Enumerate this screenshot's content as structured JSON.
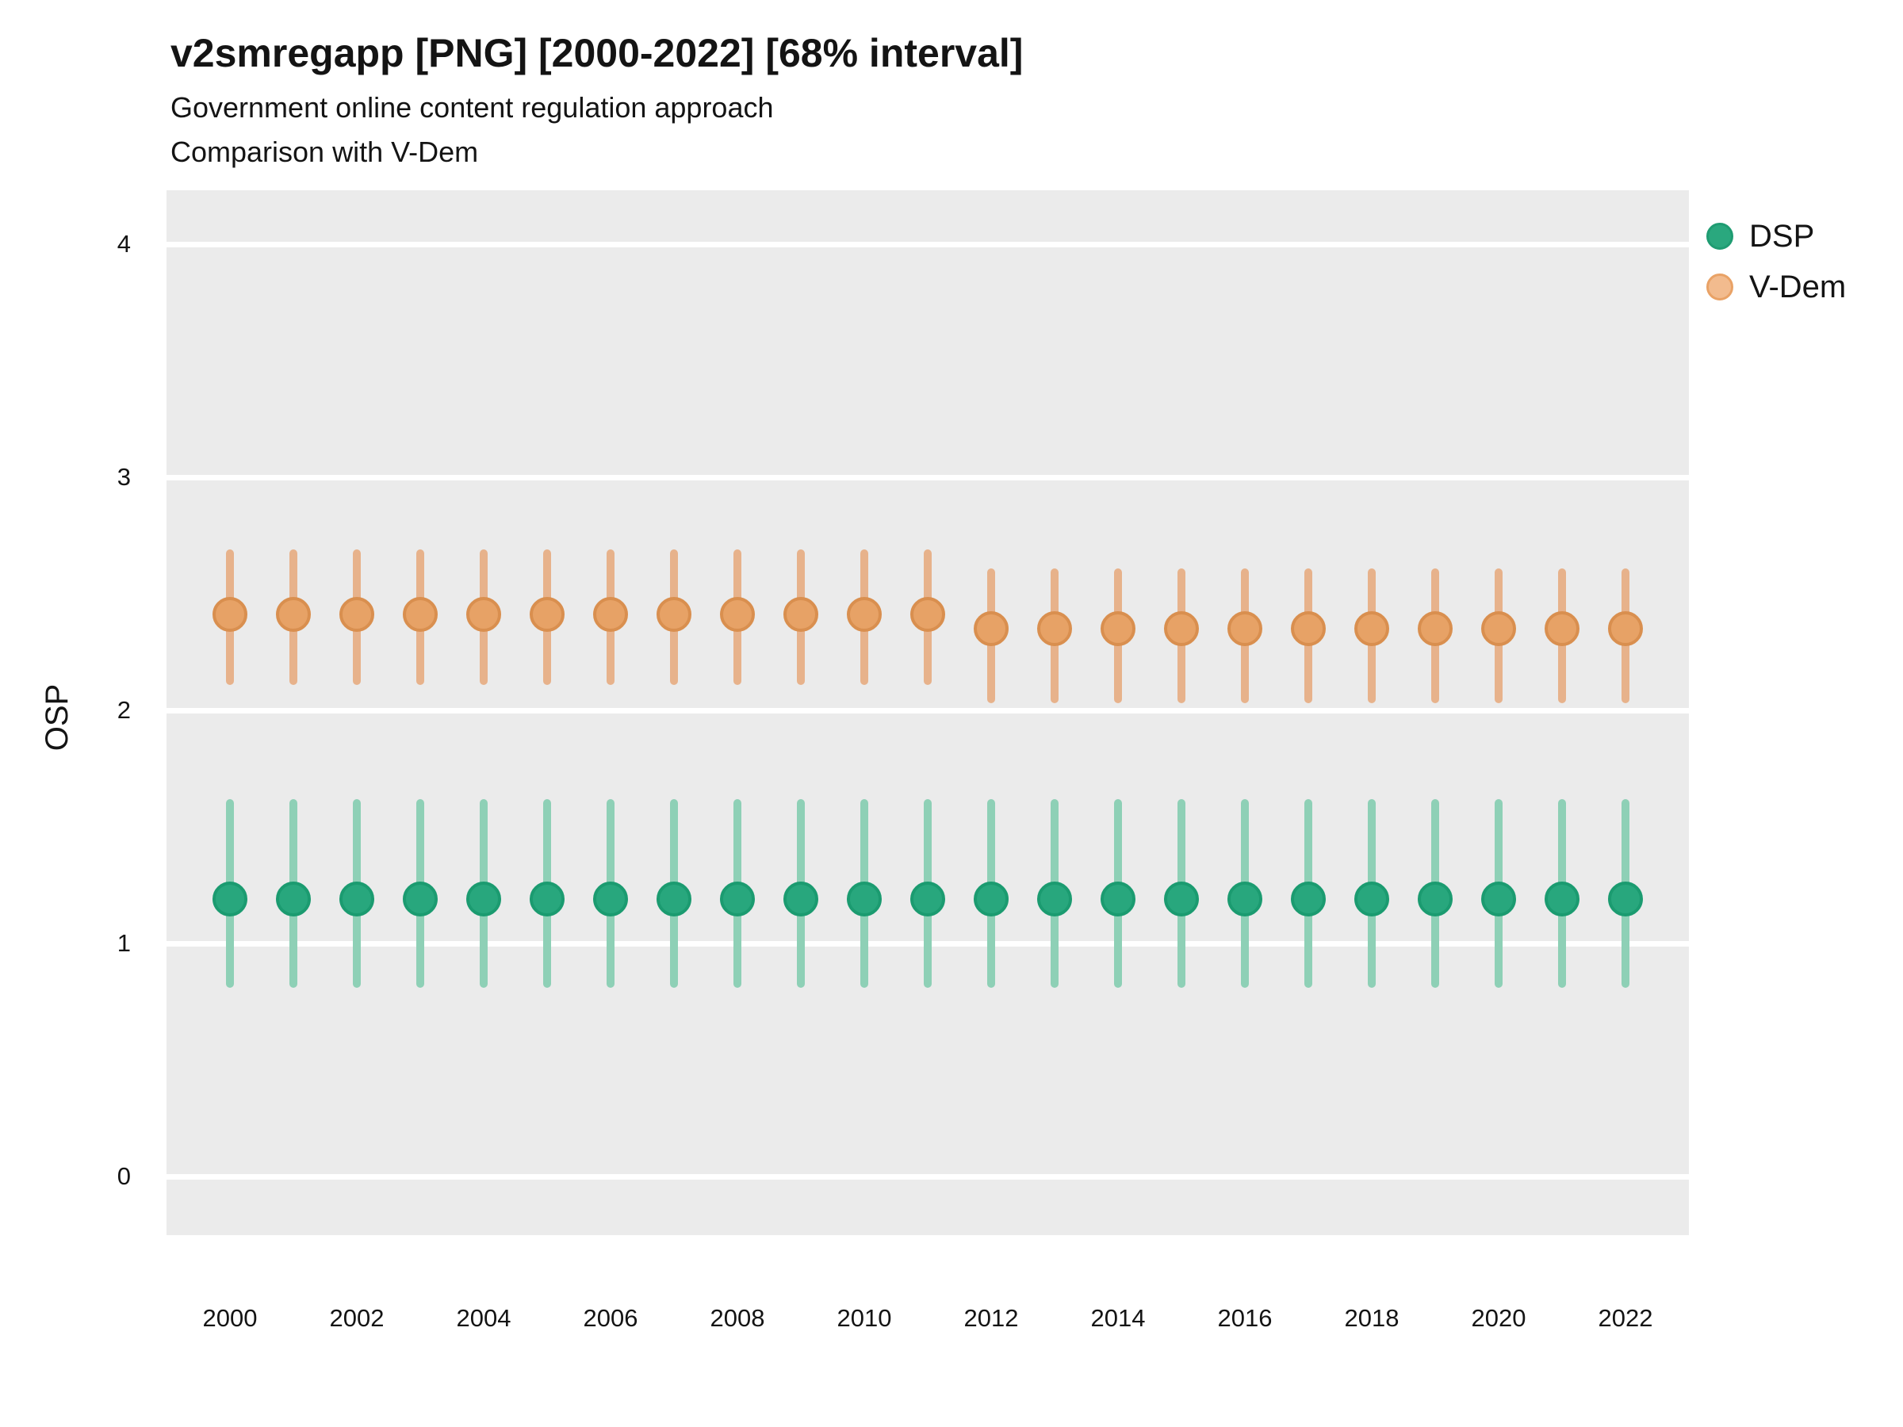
{
  "header": {
    "title": "v2smregapp [PNG] [2000-2022] [68% interval]",
    "subtitle1": "Government online content regulation approach",
    "subtitle2": "Comparison with V-Dem"
  },
  "axes": {
    "y_label": "OSP",
    "y_ticks": [
      0,
      1,
      2,
      3,
      4
    ],
    "x_ticks": [
      2000,
      2002,
      2004,
      2006,
      2008,
      2010,
      2012,
      2014,
      2016,
      2018,
      2020,
      2022
    ]
  },
  "legend": {
    "items": [
      {
        "label": "DSP",
        "fill": "#2aa87e",
        "border": "#1f9c72"
      },
      {
        "label": "V-Dem",
        "fill": "#f2bb8e",
        "border": "#e9a266"
      }
    ]
  },
  "colors": {
    "plot_bg": "#ebebeb",
    "grid": "#ffffff",
    "text": "#141414",
    "series_styles": {
      "DSP": {
        "bar": "#8ed0b6",
        "point_fill": "#28a77d",
        "point_border": "#1b9b70"
      },
      "V-Dem": {
        "bar": "#e7b28b",
        "point_fill": "#e7a266",
        "point_border": "#d98f4f"
      }
    }
  },
  "chart_data": {
    "type": "scatter",
    "style": "pointrange: point estimate with 68% credible interval bars, per year",
    "title": "v2smregapp [PNG] [2000-2022] [68% interval]",
    "subtitle": "Government online content regulation approach — Comparison with V-Dem",
    "xlabel": "",
    "ylabel": "OSP",
    "x": [
      2000,
      2001,
      2002,
      2003,
      2004,
      2005,
      2006,
      2007,
      2008,
      2009,
      2010,
      2011,
      2012,
      2013,
      2014,
      2015,
      2016,
      2017,
      2018,
      2019,
      2020,
      2021,
      2022
    ],
    "series": [
      {
        "name": "DSP",
        "color": "#1b9e77",
        "est": [
          1.19,
          1.19,
          1.19,
          1.19,
          1.19,
          1.19,
          1.19,
          1.19,
          1.19,
          1.19,
          1.19,
          1.19,
          1.19,
          1.19,
          1.19,
          1.19,
          1.19,
          1.19,
          1.19,
          1.19,
          1.19,
          1.19,
          1.19
        ],
        "lo": [
          0.81,
          0.81,
          0.81,
          0.81,
          0.81,
          0.81,
          0.81,
          0.81,
          0.81,
          0.81,
          0.81,
          0.81,
          0.81,
          0.81,
          0.81,
          0.81,
          0.81,
          0.81,
          0.81,
          0.81,
          0.81,
          0.81,
          0.81
        ],
        "hi": [
          1.62,
          1.62,
          1.62,
          1.62,
          1.62,
          1.62,
          1.62,
          1.62,
          1.62,
          1.62,
          1.62,
          1.62,
          1.62,
          1.62,
          1.62,
          1.62,
          1.62,
          1.62,
          1.62,
          1.62,
          1.62,
          1.62,
          1.62
        ]
      },
      {
        "name": "V-Dem",
        "color": "#e08a47",
        "est": [
          2.41,
          2.41,
          2.41,
          2.41,
          2.41,
          2.41,
          2.41,
          2.41,
          2.41,
          2.41,
          2.41,
          2.41,
          2.35,
          2.35,
          2.35,
          2.35,
          2.35,
          2.35,
          2.35,
          2.35,
          2.35,
          2.35,
          2.35
        ],
        "lo": [
          2.11,
          2.11,
          2.11,
          2.11,
          2.11,
          2.11,
          2.11,
          2.11,
          2.11,
          2.11,
          2.11,
          2.11,
          2.03,
          2.03,
          2.03,
          2.03,
          2.03,
          2.03,
          2.03,
          2.03,
          2.03,
          2.03,
          2.03
        ],
        "hi": [
          2.69,
          2.69,
          2.69,
          2.69,
          2.69,
          2.69,
          2.69,
          2.69,
          2.69,
          2.69,
          2.69,
          2.69,
          2.61,
          2.61,
          2.61,
          2.61,
          2.61,
          2.61,
          2.61,
          2.61,
          2.61,
          2.61,
          2.61
        ]
      }
    ],
    "ylim": [
      -0.25,
      4.25
    ],
    "xlim": [
      2000,
      2022
    ],
    "grid": "major horizontal gridlines only (white on gray panel)",
    "legend_position": "top-right outside panel"
  }
}
